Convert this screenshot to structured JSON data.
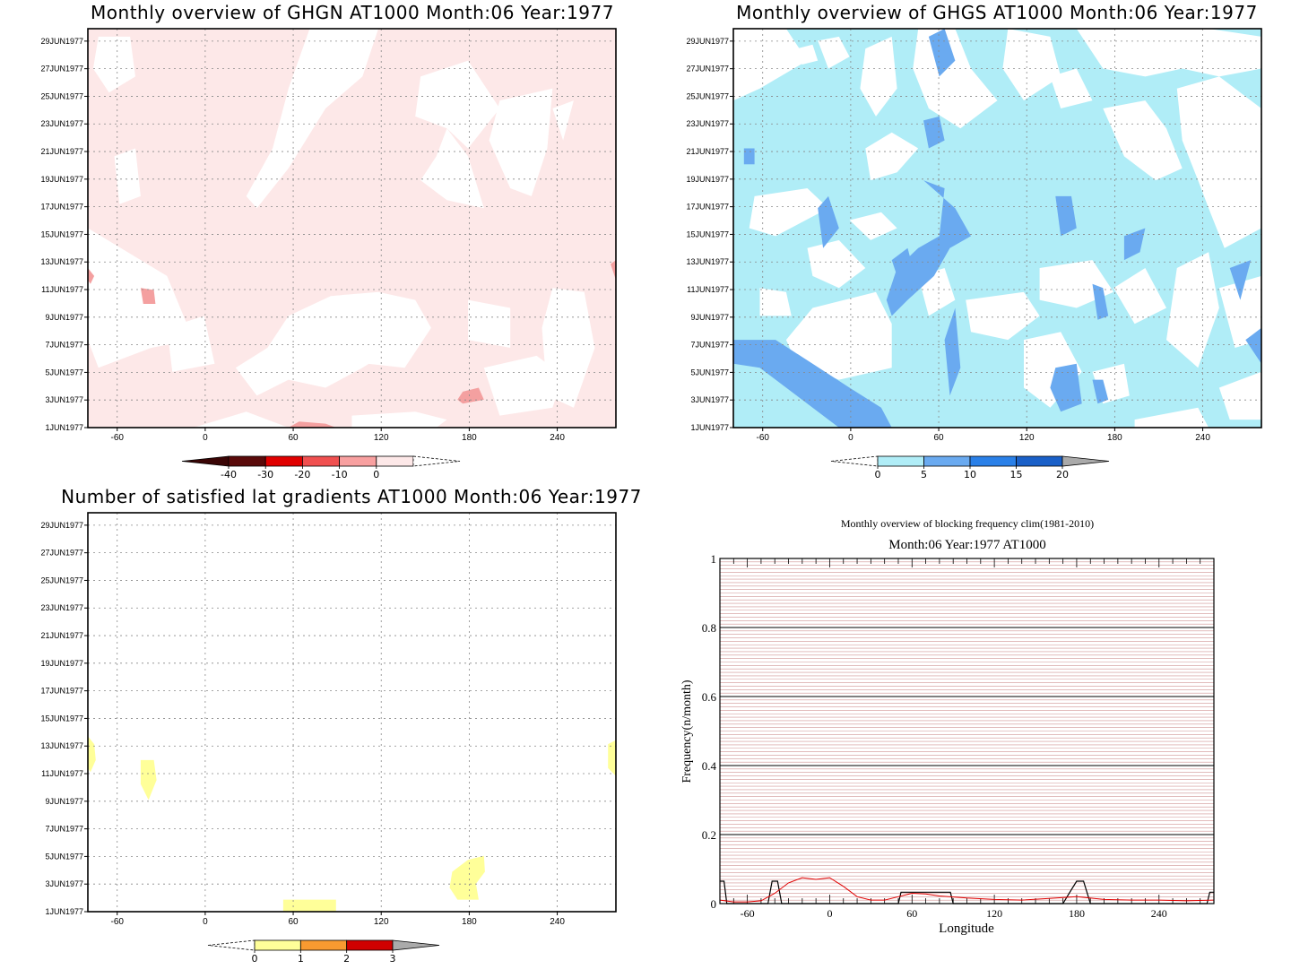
{
  "palette": {
    "ghgn_fill": "#fde8e8",
    "ghgs_fill": "#b0edf7",
    "ghgs_mid": "#6aaaf0",
    "ghgs_dark": "#4a8ee6",
    "red_patch": "#f4a0a0",
    "sat_fill": "#ffff99",
    "blocking_line": "#000000",
    "clim_line": "#e00000",
    "minor_grid": "#c07070"
  },
  "y_dates": [
    "1JUN1977",
    "3JUN1977",
    "5JUN1977",
    "7JUN1977",
    "9JUN1977",
    "11JUN1977",
    "13JUN1977",
    "15JUN1977",
    "17JUN1977",
    "19JUN1977",
    "21JUN1977",
    "23JUN1977",
    "25JUN1977",
    "27JUN1977",
    "29JUN1977"
  ],
  "x_ticks": [
    "-60",
    "0",
    "60",
    "120",
    "180",
    "240"
  ],
  "x_tick_values": [
    -60,
    0,
    60,
    120,
    180,
    240
  ],
  "panels": {
    "ghgn": {
      "title": "Monthly overview of GHGN AT1000 Month:06 Year:1977",
      "colorbar": {
        "labels": [
          "-40",
          "-30",
          "-20",
          "-10",
          "0"
        ],
        "colors": [
          "#5a0a0a",
          "#e00000",
          "#f05050",
          "#f8a0a0",
          "#fde8e8"
        ],
        "left_tip": "#3a0505",
        "right_tip": "#ffffff"
      }
    },
    "ghgs": {
      "title": "Monthly overview of GHGS AT1000 Month:06 Year:1977",
      "colorbar": {
        "labels": [
          "0",
          "5",
          "10",
          "15",
          "20"
        ],
        "colors": [
          "#b0edf7",
          "#6aaaf0",
          "#2a80e8",
          "#1a60c8"
        ],
        "left_tip": "#ffffff",
        "right_tip": "#aaaaaa"
      }
    },
    "satisfied": {
      "title": "Number of satisfied lat gradients AT1000 Month:06 Year:1977",
      "colorbar": {
        "labels": [
          "0",
          "1",
          "2",
          "3"
        ],
        "colors": [
          "#ffff99",
          "#f89a30",
          "#d00000"
        ],
        "left_tip": "#ffffff",
        "right_tip": "#aaaaaa"
      }
    },
    "blocking": {
      "title": "Monthly overview of blocking frequency clim(1981-2010)",
      "subtitle": "Month:06 Year:1977  AT1000",
      "xlabel": "Longitude",
      "ylabel": "Frequency(n/month)",
      "y_ticks": [
        "0",
        "0.2",
        "0.4",
        "0.6",
        "0.8",
        "1"
      ]
    }
  },
  "chart_data": [
    {
      "type": "heatmap",
      "title": "Monthly overview of GHGN AT1000 Month:06 Year:1977",
      "x_ticks": [
        -60,
        0,
        60,
        120,
        180,
        240
      ],
      "xlim": [
        -80,
        280
      ],
      "y_ticks": [
        "1JUN1977",
        "3JUN1977",
        "5JUN1977",
        "7JUN1977",
        "9JUN1977",
        "11JUN1977",
        "13JUN1977",
        "15JUN1977",
        "17JUN1977",
        "19JUN1977",
        "21JUN1977",
        "23JUN1977",
        "25JUN1977",
        "27JUN1977",
        "29JUN1977"
      ],
      "colorbar_levels": [
        -40,
        -30,
        -20,
        -10,
        0
      ],
      "grid": true
    },
    {
      "type": "heatmap",
      "title": "Monthly overview of GHGS AT1000 Month:06 Year:1977",
      "x_ticks": [
        -60,
        0,
        60,
        120,
        180,
        240
      ],
      "xlim": [
        -80,
        280
      ],
      "y_ticks": [
        "1JUN1977",
        "3JUN1977",
        "5JUN1977",
        "7JUN1977",
        "9JUN1977",
        "11JUN1977",
        "13JUN1977",
        "15JUN1977",
        "17JUN1977",
        "19JUN1977",
        "21JUN1977",
        "23JUN1977",
        "25JUN1977",
        "27JUN1977",
        "29JUN1977"
      ],
      "colorbar_levels": [
        0,
        5,
        10,
        15,
        20
      ],
      "grid": true
    },
    {
      "type": "heatmap",
      "title": "Number of satisfied lat gradients AT1000 Month:06 Year:1977",
      "x_ticks": [
        -60,
        0,
        60,
        120,
        180,
        240
      ],
      "xlim": [
        -80,
        280
      ],
      "y_ticks": [
        "1JUN1977",
        "3JUN1977",
        "5JUN1977",
        "7JUN1977",
        "9JUN1977",
        "11JUN1977",
        "13JUN1977",
        "15JUN1977",
        "17JUN1977",
        "19JUN1977",
        "21JUN1977",
        "23JUN1977",
        "25JUN1977",
        "27JUN1977",
        "29JUN1977"
      ],
      "colorbar_levels": [
        0,
        1,
        2,
        3
      ],
      "grid": true
    },
    {
      "type": "line",
      "title": "Monthly overview of blocking frequency clim(1981-2010)",
      "subtitle": "Month:06 Year:1977  AT1000",
      "xlabel": "Longitude",
      "ylabel": "Frequency(n/month)",
      "xlim": [
        -80,
        280
      ],
      "ylim": [
        0,
        1
      ],
      "x_ticks": [
        -60,
        0,
        60,
        120,
        180,
        240
      ],
      "y_ticks": [
        0,
        0.2,
        0.4,
        0.6,
        0.8,
        1
      ],
      "grid": true,
      "series": [
        {
          "x": [
            -80,
            -77,
            -75,
            -60,
            -45,
            -42,
            -38,
            -35,
            -32,
            -20,
            0,
            20,
            50,
            52,
            55,
            88,
            90,
            100,
            120,
            150,
            170,
            175,
            180,
            185,
            190,
            200,
            240,
            275,
            277,
            280
          ],
          "values": [
            0.065,
            0.065,
            0,
            0,
            0,
            0.065,
            0.065,
            0,
            0,
            0,
            0,
            0,
            0,
            0.033,
            0.033,
            0.033,
            0,
            0,
            0,
            0,
            0,
            0.033,
            0.065,
            0.065,
            0,
            0,
            0,
            0,
            0.033,
            0.033
          ]
        },
        {
          "x": [
            -80,
            -70,
            -60,
            -50,
            -40,
            -30,
            -20,
            -10,
            0,
            10,
            20,
            30,
            40,
            50,
            60,
            70,
            80,
            100,
            120,
            140,
            160,
            180,
            200,
            220,
            240,
            260,
            280
          ],
          "values": [
            0.01,
            0.005,
            0.005,
            0.008,
            0.03,
            0.06,
            0.075,
            0.07,
            0.075,
            0.05,
            0.02,
            0.01,
            0.01,
            0.02,
            0.03,
            0.028,
            0.022,
            0.016,
            0.012,
            0.01,
            0.015,
            0.02,
            0.012,
            0.01,
            0.01,
            0.008,
            0.01
          ]
        }
      ]
    }
  ]
}
